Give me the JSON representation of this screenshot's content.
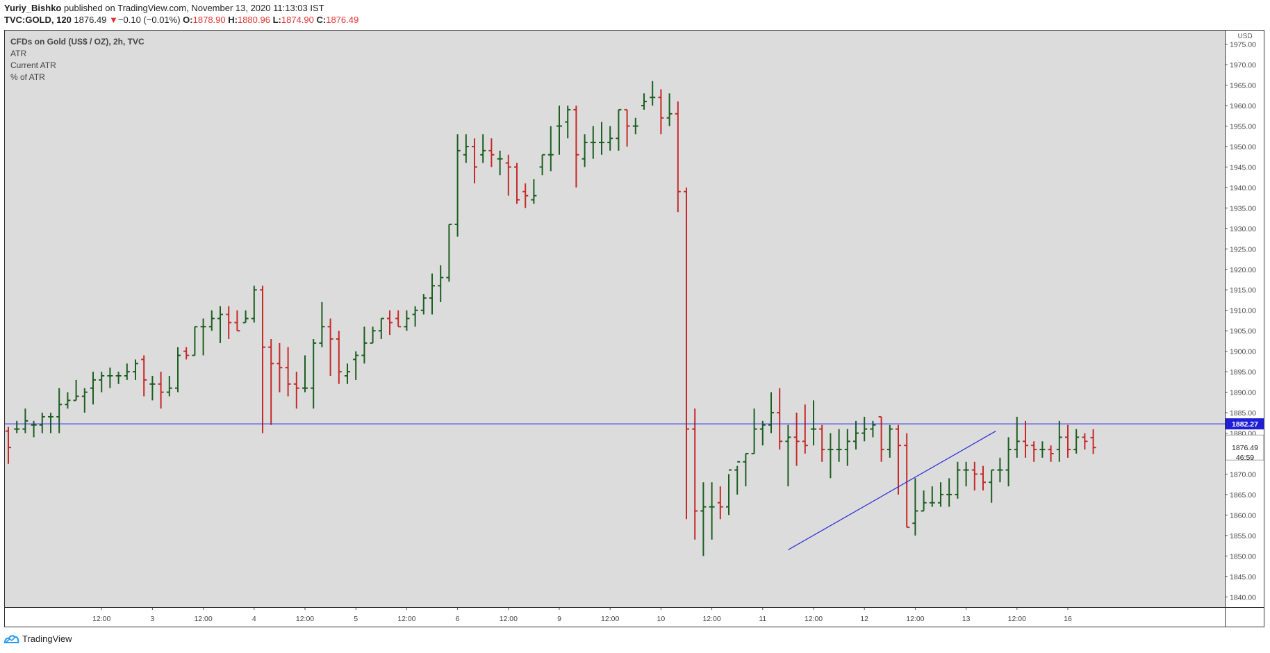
{
  "header": {
    "author": "Yuriy_Bishko",
    "published_text": "published on TradingView.com, November 13, 2020 11:13:03 IST",
    "symbol": "TVC:GOLD, 120",
    "last_price": "1876.49",
    "change_arrow": "▼",
    "change_text": "−0.10 (−0.01%)",
    "o_label": "O:",
    "o_value": "1878.90",
    "h_label": "H:",
    "h_value": "1880.96",
    "l_label": "L:",
    "l_value": "1874.90",
    "c_label": "C:",
    "c_value": "1876.49"
  },
  "legend": {
    "title": "CFDs on Gold (US$ / OZ), 2h, TVC",
    "line1": "ATR",
    "line2": "Current ATR",
    "line3": "% of ATR"
  },
  "footer": {
    "brand": "TradingView"
  },
  "colors": {
    "background": "#dcdcdc",
    "up": "#1b5e20",
    "down": "#c62828",
    "line": "#2727d8",
    "label_bg": "#1f1fd6"
  },
  "chart_data": {
    "type": "ohlc",
    "currency_label": "USD",
    "ylim": [
      1837.5,
      1978.5
    ],
    "y_ticks": [
      "1840.00",
      "1845.00",
      "1850.00",
      "1855.00",
      "1860.00",
      "1865.00",
      "1870.00",
      "1875.00",
      "1880.00",
      "1885.00",
      "1890.00",
      "1895.00",
      "1900.00",
      "1905.00",
      "1910.00",
      "1915.00",
      "1920.00",
      "1925.00",
      "1930.00",
      "1935.00",
      "1940.00",
      "1945.00",
      "1950.00",
      "1955.00",
      "1960.00",
      "1965.00",
      "1970.00",
      "1975.00"
    ],
    "x_labels": [
      {
        "bar": 6,
        "label": "12:00"
      },
      {
        "bar": 12,
        "label": "3"
      },
      {
        "bar": 18,
        "label": "12:00"
      },
      {
        "bar": 24,
        "label": "4"
      },
      {
        "bar": 30,
        "label": "12:00"
      },
      {
        "bar": 36,
        "label": "5"
      },
      {
        "bar": 42,
        "label": "12:00"
      },
      {
        "bar": 48,
        "label": "6"
      },
      {
        "bar": 54,
        "label": "12:00"
      },
      {
        "bar": 60,
        "label": "9"
      },
      {
        "bar": 66,
        "label": "12:00"
      },
      {
        "bar": 72,
        "label": "10"
      },
      {
        "bar": 78,
        "label": "12:00"
      },
      {
        "bar": 84,
        "label": "11"
      },
      {
        "bar": 90,
        "label": "12:00"
      },
      {
        "bar": 96,
        "label": "12"
      },
      {
        "bar": 102,
        "label": "12:00"
      },
      {
        "bar": 108,
        "label": "13"
      },
      {
        "bar": 114,
        "label": "12:00"
      },
      {
        "bar": 120,
        "label": "16"
      }
    ],
    "horizontal_line": {
      "price": 1882.27,
      "label": "1882.27"
    },
    "last_price": {
      "price": 1876.49,
      "label": "1876.49"
    },
    "countdown": "46:59",
    "trendline": {
      "from_bar": 92,
      "from_price": 1851.5,
      "to_bar": 116.5,
      "to_price": 1880.5
    },
    "bars": [
      [
        1880.5,
        1881.5,
        1872.5,
        1876.5
      ],
      [
        1881,
        1883,
        1880,
        1881
      ],
      [
        1881,
        1886,
        1880,
        1883
      ],
      [
        1882,
        1883,
        1879,
        1882
      ],
      [
        1882,
        1885,
        1880,
        1884
      ],
      [
        1884,
        1885,
        1880,
        1884
      ],
      [
        1884,
        1891,
        1880,
        1887
      ],
      [
        1887,
        1890,
        1886,
        1888
      ],
      [
        1888,
        1893,
        1888,
        1889
      ],
      [
        1889,
        1891,
        1885,
        1890
      ],
      [
        1891,
        1895,
        1887,
        1893
      ],
      [
        1893,
        1895,
        1890,
        1894
      ],
      [
        1894,
        1896,
        1891,
        1894
      ],
      [
        1894,
        1895,
        1892,
        1894
      ],
      [
        1894,
        1897,
        1893,
        1895
      ],
      [
        1895,
        1898,
        1893,
        1897
      ],
      [
        1898,
        1899,
        1889,
        1893
      ],
      [
        1892,
        1894,
        1888,
        1892
      ],
      [
        1892,
        1895,
        1886,
        1890
      ],
      [
        1890,
        1894,
        1889,
        1891
      ],
      [
        1891,
        1901,
        1890,
        1899
      ],
      [
        1900,
        1901,
        1898,
        1899
      ],
      [
        1899,
        1906,
        1899,
        1906
      ],
      [
        1906,
        1908,
        1899,
        1906
      ],
      [
        1906,
        1910,
        1905,
        1908
      ],
      [
        1908,
        1911,
        1902,
        1909
      ],
      [
        1909,
        1911,
        1903,
        1907
      ],
      [
        1907,
        1910,
        1905,
        1905
      ],
      [
        1907,
        1910,
        1907,
        1908
      ],
      [
        1908,
        1916,
        1907,
        1915
      ],
      [
        1915,
        1916,
        1880,
        1901
      ],
      [
        1901,
        1903,
        1882,
        1897
      ],
      [
        1897,
        1902,
        1890,
        1896
      ],
      [
        1896,
        1901,
        1889,
        1892
      ],
      [
        1892,
        1895,
        1886,
        1891
      ],
      [
        1891,
        1899,
        1890,
        1891
      ],
      [
        1891,
        1903,
        1886,
        1902
      ],
      [
        1902,
        1912,
        1901,
        1906
      ],
      [
        1906,
        1908,
        1894,
        1903
      ],
      [
        1903,
        1905,
        1892,
        1895
      ],
      [
        1894,
        1897,
        1892,
        1895
      ],
      [
        1898,
        1900,
        1893,
        1899
      ],
      [
        1899,
        1906,
        1897,
        1902
      ],
      [
        1902,
        1906,
        1902,
        1905
      ],
      [
        1905,
        1908,
        1903,
        1908
      ],
      [
        1908,
        1910,
        1904,
        1907
      ],
      [
        1908,
        1910,
        1906,
        1906
      ],
      [
        1906,
        1910,
        1905,
        1908
      ],
      [
        1909,
        1911,
        1906,
        1910
      ],
      [
        1910,
        1914,
        1909,
        1913
      ],
      [
        1913,
        1919,
        1909,
        1916
      ],
      [
        1916,
        1921,
        1912,
        1918
      ],
      [
        1918,
        1931,
        1917,
        1931
      ],
      [
        1931,
        1953,
        1928,
        1949
      ],
      [
        1948,
        1953,
        1946,
        1950
      ],
      [
        1950,
        1952,
        1941,
        1945
      ],
      [
        1948,
        1953,
        1946,
        1949
      ],
      [
        1949,
        1952,
        1945,
        1948
      ],
      [
        1947,
        1949,
        1943,
        1947
      ],
      [
        1946,
        1948,
        1938,
        1945
      ],
      [
        1945,
        1946,
        1936,
        1937
      ],
      [
        1939,
        1941,
        1935,
        1938
      ],
      [
        1937,
        1942,
        1936,
        1938
      ],
      [
        1945,
        1948,
        1943,
        1948
      ],
      [
        1948,
        1955,
        1944,
        1948
      ],
      [
        1955,
        1960,
        1948,
        1955
      ],
      [
        1956,
        1960,
        1952,
        1959
      ],
      [
        1959,
        1960,
        1940,
        1948
      ],
      [
        1947,
        1953,
        1945,
        1951
      ],
      [
        1951,
        1955,
        1947,
        1951
      ],
      [
        1951,
        1956,
        1948,
        1951
      ],
      [
        1951,
        1955,
        1949,
        1952
      ],
      [
        1952,
        1959,
        1949,
        1959
      ],
      [
        1959,
        1959,
        1950,
        1955
      ],
      [
        1955,
        1957,
        1953,
        1955
      ],
      [
        1960,
        1963,
        1959,
        1961
      ],
      [
        1962,
        1966,
        1960,
        1962
      ],
      [
        1962,
        1964,
        1953,
        1957
      ],
      [
        1957,
        1963,
        1955,
        1958
      ],
      [
        1958,
        1961,
        1934,
        1939
      ],
      [
        1939,
        1940,
        1859,
        1881
      ],
      [
        1881,
        1886,
        1854,
        1861
      ],
      [
        1861,
        1868,
        1850,
        1862
      ],
      [
        1862,
        1868,
        1854,
        1862
      ],
      [
        1863,
        1867,
        1859,
        1862
      ],
      [
        1862,
        1870,
        1860,
        1871
      ],
      [
        1871,
        1872,
        1865,
        1873
      ],
      [
        1873,
        1875,
        1867,
        1875
      ],
      [
        1875,
        1886,
        1875,
        1881
      ],
      [
        1881,
        1883,
        1877,
        1882
      ],
      [
        1882,
        1890,
        1880,
        1885
      ],
      [
        1885,
        1891,
        1876,
        1878
      ],
      [
        1878,
        1882,
        1867,
        1879
      ],
      [
        1879,
        1885,
        1872,
        1878
      ],
      [
        1878,
        1887,
        1875,
        1877
      ],
      [
        1881,
        1888,
        1877,
        1881
      ],
      [
        1881,
        1882,
        1873,
        1876
      ],
      [
        1876,
        1880,
        1869,
        1876
      ],
      [
        1876,
        1881,
        1873,
        1876
      ],
      [
        1876,
        1881,
        1872,
        1878
      ],
      [
        1878,
        1883,
        1876,
        1880
      ],
      [
        1880,
        1884,
        1878,
        1881
      ],
      [
        1881,
        1883,
        1879,
        1882
      ],
      [
        1884,
        1884,
        1873,
        1876
      ],
      [
        1876,
        1882,
        1874,
        1881
      ],
      [
        1881,
        1882,
        1865,
        1877
      ],
      [
        1877,
        1880,
        1857,
        1857
      ],
      [
        1858,
        1869,
        1855,
        1861
      ],
      [
        1861,
        1866,
        1861,
        1863
      ],
      [
        1863,
        1867,
        1862,
        1863
      ],
      [
        1863,
        1868,
        1862,
        1865
      ],
      [
        1865,
        1869,
        1862,
        1865
      ],
      [
        1865,
        1873,
        1864,
        1871
      ],
      [
        1871,
        1873,
        1867,
        1871
      ],
      [
        1871,
        1873,
        1866,
        1870
      ],
      [
        1870,
        1872,
        1866,
        1868
      ],
      [
        1868,
        1871,
        1863,
        1871
      ],
      [
        1871,
        1874,
        1868,
        1871
      ],
      [
        1871,
        1879,
        1867,
        1876
      ],
      [
        1876,
        1884,
        1874,
        1878
      ],
      [
        1878,
        1883,
        1874,
        1877
      ],
      [
        1877,
        1878,
        1873,
        1876
      ],
      [
        1876,
        1878,
        1874,
        1876
      ],
      [
        1876,
        1877,
        1873,
        1875
      ],
      [
        1876,
        1883,
        1873,
        1879
      ],
      [
        1879,
        1882,
        1874,
        1876
      ],
      [
        1876,
        1881,
        1875,
        1879
      ],
      [
        1879,
        1880,
        1876,
        1878
      ],
      [
        1878.9,
        1880.96,
        1874.9,
        1876.49
      ]
    ]
  }
}
